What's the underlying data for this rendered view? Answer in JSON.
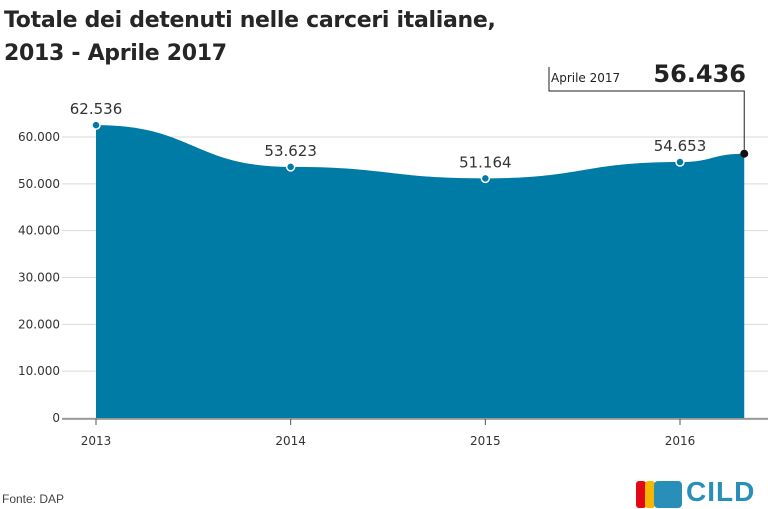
{
  "title_line1": "Totale dei detenuti nelle carceri italiane,",
  "title_line2": "2013 - Aprile 2017",
  "source": "Fonte: DAP",
  "logo_text": "CILD",
  "colors": {
    "area": "#007ba5",
    "grid": "#d9d9d9",
    "text": "#333333",
    "logo_red": "#e30613",
    "logo_yellow": "#f5b800",
    "logo_blue": "#2a8fb8"
  },
  "chart_data": {
    "type": "area",
    "title": "Totale dei detenuti nelle carceri italiane, 2013 - Aprile 2017",
    "x": [
      2013,
      2014,
      2015,
      2016,
      2016.33
    ],
    "values": [
      62536,
      53623,
      51164,
      54653,
      56436
    ],
    "point_labels": [
      "62.536",
      "53.623",
      "51.164",
      "54.653",
      "56.436"
    ],
    "callout_label": "Aprile 2017",
    "x_ticks": [
      "2013",
      "2014",
      "2015",
      "2016"
    ],
    "y_ticks": [
      "0",
      "10.000",
      "20.000",
      "30.000",
      "40.000",
      "50.000",
      "60.000"
    ],
    "ylim": [
      0,
      60000
    ],
    "grid": true
  }
}
